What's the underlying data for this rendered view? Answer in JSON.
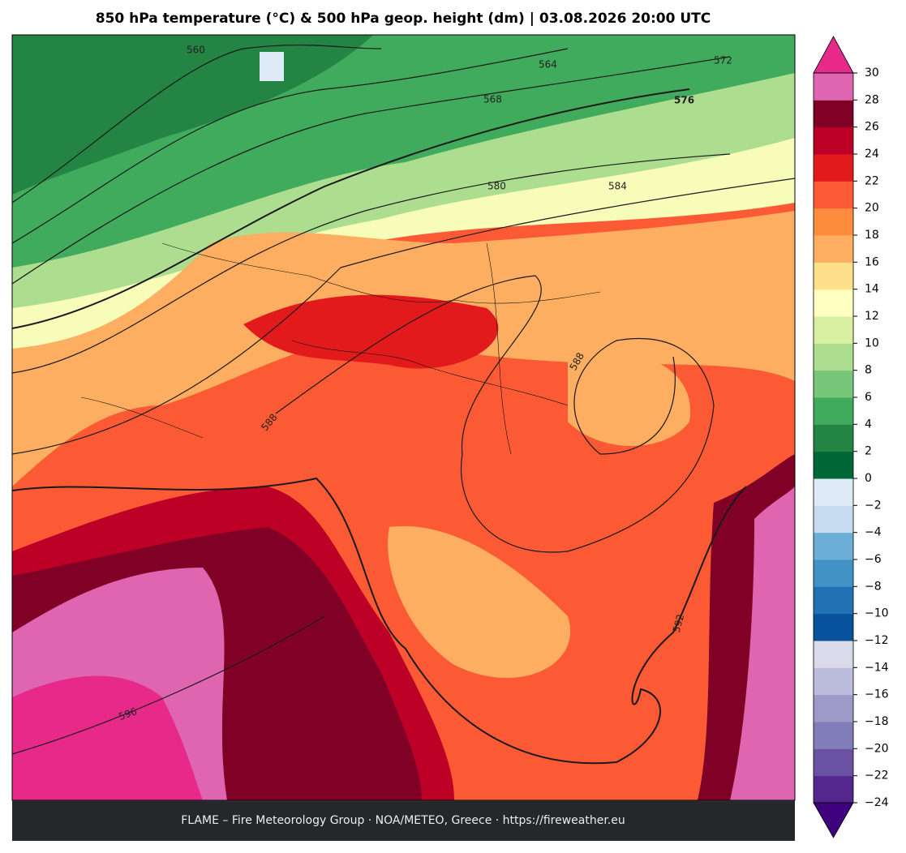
{
  "title": "850 hPa temperature (°C) & 500 hPa geop. height (dm)  |  03.08.2026 20:00 UTC",
  "footer": "FLAME – Fire Meteorology Group · NOA/METEO, Greece · https://fireweather.eu",
  "contour_labels": [
    "560",
    "564",
    "568",
    "572",
    "576",
    "580",
    "584",
    "588",
    "588",
    "592",
    "596"
  ],
  "colorbar": {
    "lim": [
      -24,
      30
    ],
    "ticks": [
      {
        "value": -24,
        "label": "−24"
      },
      {
        "value": -22,
        "label": "−22"
      },
      {
        "value": -20,
        "label": "−20"
      },
      {
        "value": -18,
        "label": "−18"
      },
      {
        "value": -16,
        "label": "−16"
      },
      {
        "value": -14,
        "label": "−14"
      },
      {
        "value": -12,
        "label": "−12"
      },
      {
        "value": -10,
        "label": "−10"
      },
      {
        "value": -8,
        "label": "−8"
      },
      {
        "value": -6,
        "label": "−6"
      },
      {
        "value": -4,
        "label": "−4"
      },
      {
        "value": -2,
        "label": "−2"
      },
      0,
      2,
      4,
      6,
      8,
      10,
      12,
      14,
      16,
      18,
      20,
      22,
      24,
      26,
      28,
      30
    ],
    "colors": [
      "#54278f",
      "#6a51a3",
      "#807dba",
      "#9e9ac8",
      "#bcbddc",
      "#dadaeb",
      "#08519c",
      "#2171b5",
      "#4292c6",
      "#6baed6",
      "#c6dbef",
      "#deebf7",
      "#006837",
      "#238443",
      "#41ab5d",
      "#78c679",
      "#addd8e",
      "#d9f0a3",
      "#ffffbf",
      "#fee08b",
      "#fdae61",
      "#fd8d3c",
      "#fc5a34",
      "#e31a1c",
      "#bd0026",
      "#800026",
      "#df65b0"
    ],
    "under_color": "#3f007d",
    "over_color": "#e7298a"
  }
}
